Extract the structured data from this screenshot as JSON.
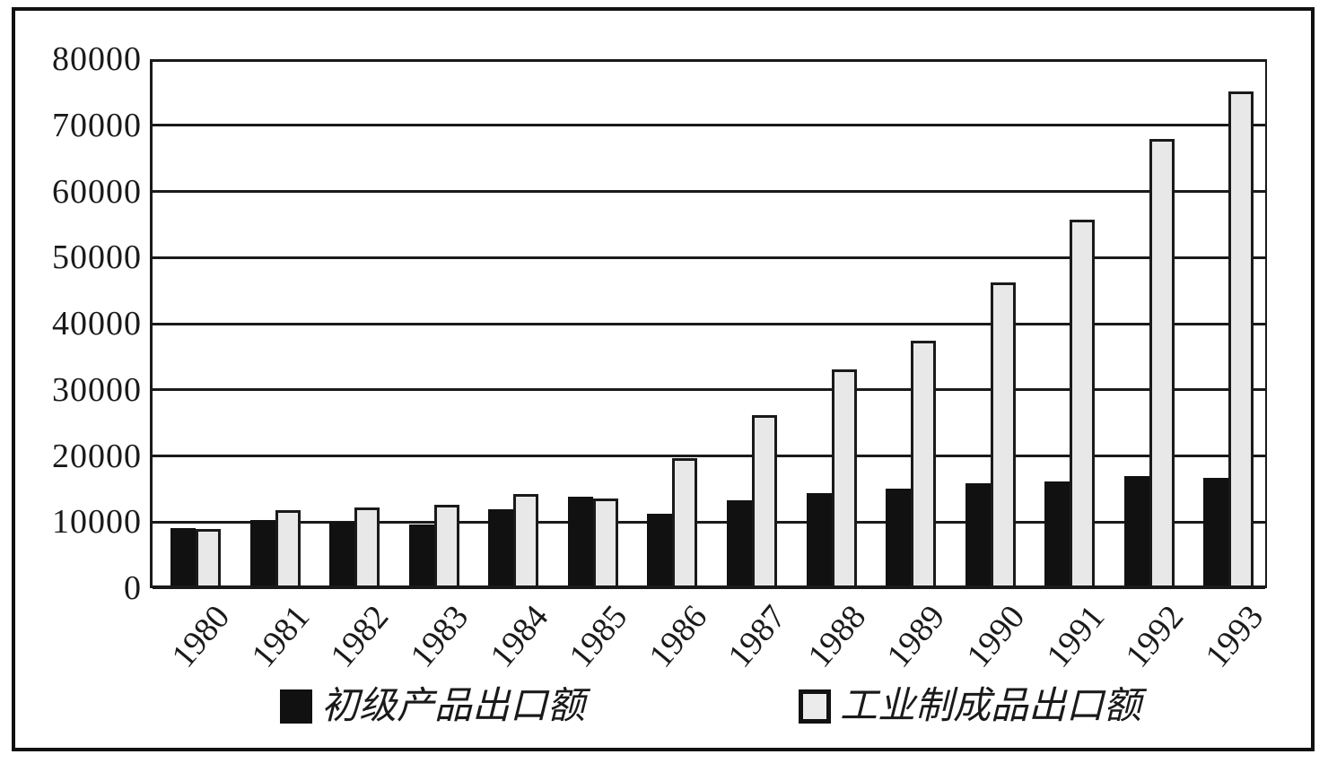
{
  "chart_data": {
    "type": "bar",
    "title": "",
    "categories": [
      "1980",
      "1981",
      "1982",
      "1983",
      "1984",
      "1985",
      "1986",
      "1987",
      "1988",
      "1989",
      "1990",
      "1991",
      "1992",
      "1993"
    ],
    "series": [
      {
        "name": "初级产品出口额",
        "color": "#111111",
        "values": [
          9114,
          10248,
          10050,
          9620,
          11934,
          13828,
          11272,
          13231,
          14406,
          15078,
          15886,
          16145,
          17004,
          16666
        ]
      },
      {
        "name": "工业制成品出口额",
        "color": "#e8e8e8",
        "values": [
          9005,
          11759,
          12271,
          12606,
          14205,
          13522,
          19670,
          26206,
          33110,
          37460,
          46205,
          55698,
          67936,
          75078
        ]
      }
    ],
    "ylim": [
      0,
      80000
    ],
    "yticks": [
      0,
      10000,
      20000,
      30000,
      40000,
      50000,
      60000,
      70000,
      80000
    ],
    "xlabel": "",
    "ylabel": "",
    "grid": "horizontal",
    "legend_position": "bottom"
  },
  "colors": {
    "bar_dark": "#111111",
    "bar_light": "#e8e8e8",
    "stroke": "#1a1a1a",
    "background": "#ffffff"
  }
}
